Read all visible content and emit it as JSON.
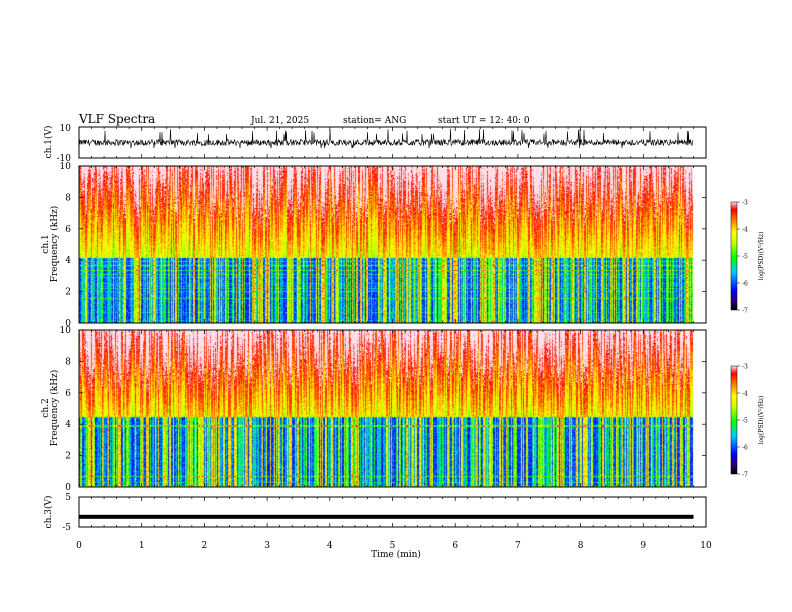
{
  "header": {
    "title": "VLF Spectra",
    "date": "Jul. 21, 2025",
    "station": "station= ANG",
    "start": "start UT = 12: 40: 0"
  },
  "panels": {
    "ch1": {
      "ylabel": "ch.1(V)",
      "yticks": [
        "10",
        "-10"
      ]
    },
    "spec1": {
      "ylabel_top": "ch.1",
      "ylabel_bottom": "Frequency (kHz)"
    },
    "spec2": {
      "ylabel_top": "ch.2",
      "ylabel_bottom": "Frequency (kHz)"
    },
    "ch3": {
      "ylabel": "ch.3(V)",
      "yticks": [
        "5",
        "-5"
      ]
    }
  },
  "colorbar": {
    "label": "log(PSD)(V²/Hz)",
    "ticks": [
      "-3",
      "-4",
      "-5",
      "-6",
      "-7"
    ]
  },
  "chart_data": [
    {
      "type": "line",
      "name": "ch1 waveform",
      "xlim": [
        0,
        10
      ],
      "ylim": [
        -10,
        10
      ],
      "ylabel": "ch.1(V)",
      "description_values": "noisy signal ~ -2..+2 V with spikes to about +9 V",
      "baseline_v": 0,
      "typical_amplitude_v": 2,
      "spike_peak_v": 9
    },
    {
      "type": "heatmap",
      "name": "ch1 spectrogram",
      "xlim": [
        0,
        10
      ],
      "ylim": [
        0,
        10
      ],
      "yticks": [
        0,
        2,
        4,
        6,
        8,
        10
      ],
      "zlim": [
        -7,
        -3
      ],
      "ylabel": "Frequency (kHz)",
      "low_band_khz": [
        0,
        4.2
      ],
      "data_end_min": 9.8
    },
    {
      "type": "heatmap",
      "name": "ch2 spectrogram",
      "xlim": [
        0,
        10
      ],
      "ylim": [
        0,
        10
      ],
      "yticks": [
        0,
        2,
        4,
        6,
        8,
        10
      ],
      "zlim": [
        -7,
        -3
      ],
      "ylabel": "Frequency (kHz)",
      "low_band_khz": [
        0,
        4.5
      ],
      "data_end_min": 9.8
    },
    {
      "type": "line",
      "name": "ch3 waveform",
      "xlim": [
        0,
        10
      ],
      "ylim": [
        -5,
        5
      ],
      "ylabel": "ch.3(V)",
      "level_v": -1.6
    }
  ],
  "xaxis": {
    "label": "Time (min)",
    "ticks": [
      "0",
      "1",
      "2",
      "3",
      "4",
      "5",
      "6",
      "7",
      "8",
      "9",
      "10"
    ]
  }
}
